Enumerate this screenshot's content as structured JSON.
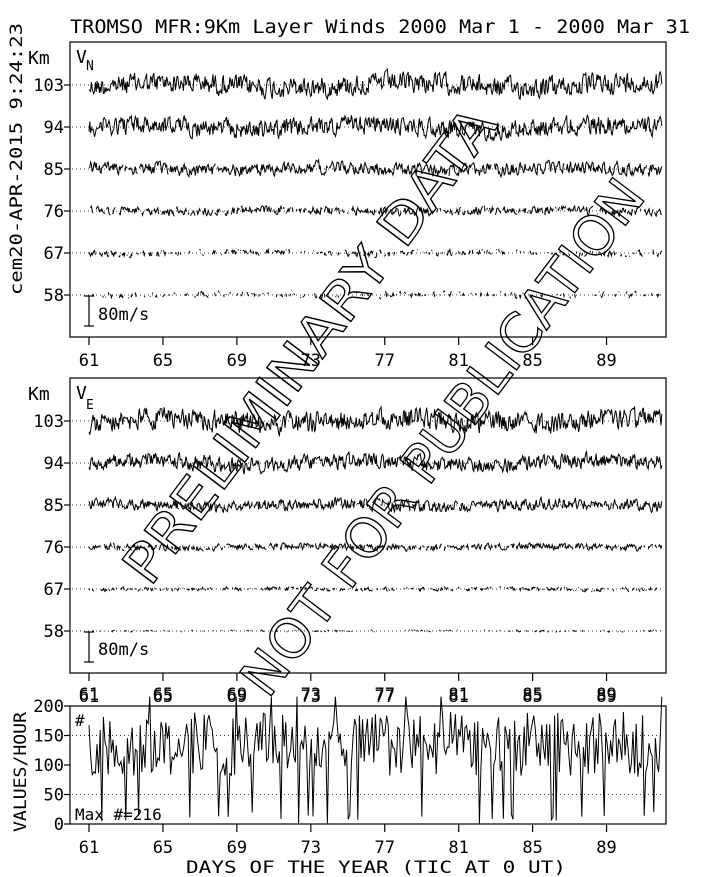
{
  "header": {
    "title": "TROMSO MFR:9Km Layer Winds 2000 Mar  1 - 2000 Mar 31",
    "side_stamp": "cem20-APR-2015  9:24:23"
  },
  "watermark": {
    "line1": "PRELIMINARY DATA",
    "line2": "NOT FOR PUBLICATION"
  },
  "chart_data": [
    {
      "type": "line",
      "panel": "V",
      "component_label": "V",
      "component_subscript": "N",
      "y_unit": "Km",
      "layers": [
        103,
        94,
        85,
        76,
        67,
        58
      ],
      "scale_bar_label": "80m/s",
      "x_ticks": [
        "61",
        "65",
        "69",
        "73",
        "77",
        "81",
        "85",
        "89"
      ],
      "x_range": [
        61,
        92
      ],
      "series": [
        {
          "layer": 103,
          "amplitude_ms": 20,
          "gappiness": 0.0
        },
        {
          "layer": 94,
          "amplitude_ms": 18,
          "gappiness": 0.0
        },
        {
          "layer": 85,
          "amplitude_ms": 12,
          "gappiness": 0.02
        },
        {
          "layer": 76,
          "amplitude_ms": 8,
          "gappiness": 0.12
        },
        {
          "layer": 67,
          "amplitude_ms": 6,
          "gappiness": 0.35
        },
        {
          "layer": 58,
          "amplitude_ms": 6,
          "gappiness": 0.55
        }
      ]
    },
    {
      "type": "line",
      "panel": "VE",
      "component_label": "V",
      "component_subscript": "E",
      "y_unit": "Km",
      "layers": [
        103,
        94,
        85,
        76,
        67,
        58
      ],
      "scale_bar_label": "80m/s",
      "x_ticks": [
        "61",
        "65",
        "69",
        "73",
        "77",
        "81",
        "85",
        "89"
      ],
      "x_range": [
        61,
        92
      ],
      "series": [
        {
          "layer": 103,
          "amplitude_ms": 20,
          "gappiness": 0.0
        },
        {
          "layer": 94,
          "amplitude_ms": 15,
          "gappiness": 0.0
        },
        {
          "layer": 85,
          "amplitude_ms": 11,
          "gappiness": 0.02
        },
        {
          "layer": 76,
          "amplitude_ms": 6,
          "gappiness": 0.1
        },
        {
          "layer": 67,
          "amplitude_ms": 4,
          "gappiness": 0.3
        },
        {
          "layer": 58,
          "amplitude_ms": 2,
          "gappiness": 0.55
        }
      ]
    },
    {
      "type": "line",
      "panel": "count",
      "ylabel": "VALUES/HOUR",
      "y_ticks": [
        "200",
        "150",
        "100",
        "50",
        "0"
      ],
      "ylim": [
        0,
        200
      ],
      "corner_label": "#",
      "max_label": "Max #=216",
      "xlabel": "DAYS OF THE YEAR (TIC AT 0 UT)",
      "x_ticks": [
        "61",
        "65",
        "69",
        "73",
        "77",
        "81",
        "85",
        "89"
      ],
      "x_range": [
        61,
        92
      ],
      "dotted_gridlines": [
        50,
        150
      ],
      "mean_values_per_hour": 135,
      "max_values_per_hour": 216
    }
  ]
}
